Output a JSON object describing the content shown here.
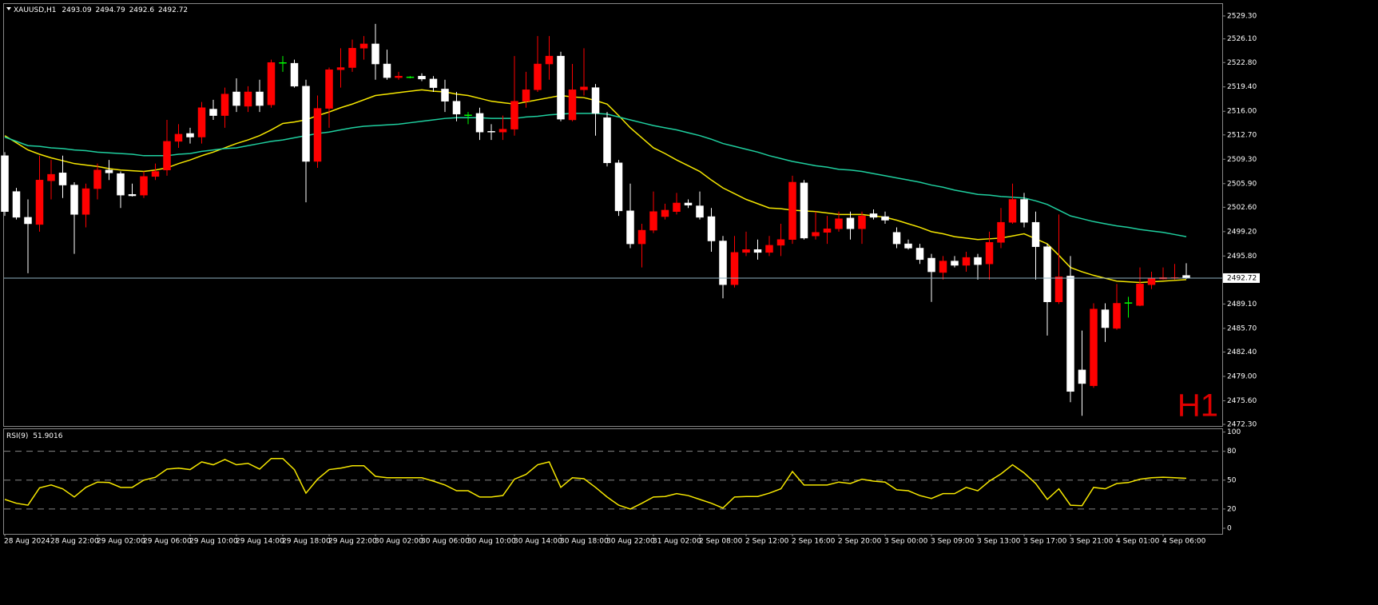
{
  "chart_data": {
    "type": "candlestick",
    "symbol": "XAUUSD,H1",
    "timeframe_label": "H1",
    "categories": [
      "28 Aug 2024",
      null,
      null,
      null,
      "28 Aug 22:00",
      null,
      null,
      null,
      "29 Aug 02:00",
      null,
      null,
      null,
      "29 Aug 06:00",
      null,
      null,
      null,
      "29 Aug 10:00",
      null,
      null,
      null,
      "29 Aug 14:00",
      null,
      null,
      null,
      "29 Aug 18:00",
      null,
      null,
      null,
      "29 Aug 22:00",
      null,
      null,
      null,
      "30 Aug 02:00",
      null,
      null,
      null,
      "30 Aug 06:00",
      null,
      null,
      null,
      "30 Aug 10:00",
      null,
      null,
      null,
      "30 Aug 14:00",
      null,
      null,
      null,
      "30 Aug 18:00",
      null,
      null,
      null,
      "30 Aug 22:00",
      null,
      null,
      null,
      "31 Aug 02:00",
      null,
      null,
      null,
      "2 Sep 08:00",
      null,
      null,
      null,
      "2 Sep 12:00",
      null,
      null,
      null,
      "2 Sep 16:00",
      null,
      null,
      null,
      "2 Sep 20:00",
      null,
      null,
      null,
      "3 Sep 00:00",
      null,
      null,
      null,
      "3 Sep 09:00",
      null,
      null,
      null,
      "3 Sep 13:00",
      null,
      null,
      null,
      "3 Sep 17:00",
      null,
      null,
      null,
      "3 Sep 21:00",
      null,
      null,
      null,
      "4 Sep 01:00",
      null,
      null,
      null,
      "4 Sep 06:00",
      null,
      null
    ],
    "open": [
      2509.8,
      2504.8,
      2501.2,
      2500.2,
      2506.3,
      2507.4,
      2505.7,
      2501.6,
      2505.2,
      2507.8,
      2507.3,
      2504.4,
      2504.3,
      2506.9,
      2507.8,
      2511.8,
      2512.9,
      2512.4,
      2516.3,
      2515.4,
      2518.7,
      2516.7,
      2518.7,
      2516.9,
      2522.8,
      2522.7,
      2519.5,
      2509.0,
      2516.4,
      2521.8,
      2522.1,
      2524.8,
      2525.4,
      2522.6,
      2520.7,
      2520.8,
      2520.9,
      2520.5,
      2519.1,
      2517.4,
      2515.5,
      2515.7,
      2513.2,
      2513.1,
      2513.5,
      2517.4,
      2519.0,
      2522.6,
      2523.7,
      2514.8,
      2519.0,
      2519.3,
      2515.1,
      2508.8,
      2502.1,
      2497.5,
      2499.4,
      2501.3,
      2502.0,
      2503.2,
      2502.8,
      2501.3,
      2497.9,
      2491.8,
      2496.3,
      2496.7,
      2496.3,
      2497.3,
      2498.1,
      2506.0,
      2498.6,
      2499.1,
      2499.6,
      2501.1,
      2499.6,
      2501.7,
      2501.3,
      2499.1,
      2497.5,
      2496.9,
      2495.5,
      2493.5,
      2495.1,
      2494.5,
      2495.6,
      2494.7,
      2497.7,
      2500.5,
      2503.7,
      2500.5,
      2497.1,
      2489.4,
      2493.0,
      2479.9,
      2477.7,
      2488.3,
      2485.7,
      2489.3,
      2488.9,
      2491.8,
      2492.6,
      2492.7,
      2493.09
    ],
    "high": [
      2510.3,
      2505.3,
      2503.7,
      2509.8,
      2509.2,
      2509.8,
      2506.1,
      2505.9,
      2508.7,
      2509.2,
      2507.6,
      2505.9,
      2507.6,
      2508.7,
      2514.8,
      2514.2,
      2513.7,
      2517.3,
      2517.6,
      2519.3,
      2520.6,
      2519.5,
      2520.4,
      2523.2,
      2523.7,
      2523.2,
      2520.4,
      2518.2,
      2522.1,
      2524.8,
      2526.0,
      2526.5,
      2528.2,
      2524.6,
      2521.5,
      2520.9,
      2521.3,
      2520.9,
      2520.4,
      2518.7,
      2515.9,
      2516.5,
      2514.2,
      2515.4,
      2523.7,
      2521.5,
      2526.5,
      2526.5,
      2524.3,
      2522.6,
      2524.8,
      2519.8,
      2515.9,
      2509.2,
      2505.9,
      2500.3,
      2504.8,
      2503.1,
      2504.6,
      2503.7,
      2504.8,
      2502.5,
      2498.6,
      2498.6,
      2499.2,
      2498.1,
      2498.6,
      2500.3,
      2507.0,
      2506.4,
      2502.0,
      2501.4,
      2502.0,
      2502.0,
      2502.0,
      2502.3,
      2502.0,
      2499.8,
      2498.1,
      2497.5,
      2496.1,
      2495.8,
      2495.8,
      2496.4,
      2496.1,
      2499.2,
      2502.5,
      2505.9,
      2504.6,
      2502.0,
      2497.5,
      2501.6,
      2495.8,
      2485.4,
      2489.2,
      2489.2,
      2491.9,
      2490.1,
      2494.2,
      2493.6,
      2494.2,
      2494.7,
      2494.79
    ],
    "low": [
      2501.4,
      2500.9,
      2493.4,
      2499.2,
      2503.7,
      2503.9,
      2496.1,
      2499.8,
      2503.7,
      2506.4,
      2502.5,
      2504.1,
      2503.9,
      2506.4,
      2507.0,
      2510.9,
      2511.5,
      2511.5,
      2514.8,
      2513.7,
      2515.9,
      2515.9,
      2515.9,
      2516.5,
      2521.5,
      2519.3,
      2503.3,
      2508.1,
      2513.7,
      2519.3,
      2521.5,
      2523.2,
      2520.4,
      2520.4,
      2520.4,
      2520.6,
      2520.2,
      2518.7,
      2515.9,
      2514.6,
      2514.2,
      2512.0,
      2512.0,
      2512.0,
      2512.6,
      2516.5,
      2518.7,
      2520.4,
      2514.6,
      2514.6,
      2518.2,
      2512.6,
      2508.3,
      2501.4,
      2496.9,
      2494.2,
      2499.0,
      2500.9,
      2501.6,
      2502.5,
      2500.9,
      2496.4,
      2489.9,
      2491.4,
      2495.8,
      2495.3,
      2495.8,
      2495.8,
      2497.5,
      2498.1,
      2498.1,
      2497.5,
      2499.2,
      2498.1,
      2497.5,
      2500.9,
      2500.3,
      2496.9,
      2496.7,
      2494.7,
      2489.4,
      2492.5,
      2494.2,
      2493.6,
      2492.5,
      2492.5,
      2496.9,
      2500.3,
      2499.8,
      2492.5,
      2484.7,
      2489.1,
      2475.4,
      2473.5,
      2477.4,
      2483.8,
      2485.5,
      2487.2,
      2488.8,
      2491.2,
      2492.5,
      2492.5,
      2492.6
    ],
    "close": [
      2502.0,
      2501.2,
      2500.3,
      2506.4,
      2507.2,
      2505.7,
      2501.6,
      2505.2,
      2507.8,
      2507.4,
      2504.3,
      2504.2,
      2506.9,
      2507.6,
      2511.8,
      2512.8,
      2512.4,
      2516.5,
      2515.4,
      2518.4,
      2516.8,
      2518.7,
      2516.8,
      2522.8,
      2522.8,
      2519.5,
      2509.0,
      2516.4,
      2521.8,
      2522.1,
      2524.8,
      2525.4,
      2522.6,
      2520.7,
      2520.9,
      2520.8,
      2520.5,
      2519.3,
      2517.4,
      2515.6,
      2515.5,
      2513.1,
      2513.1,
      2513.5,
      2517.4,
      2519.0,
      2522.6,
      2523.7,
      2514.9,
      2519.0,
      2519.4,
      2515.7,
      2508.8,
      2502.1,
      2497.5,
      2499.4,
      2502.0,
      2502.2,
      2503.2,
      2502.9,
      2501.2,
      2497.9,
      2491.8,
      2496.3,
      2496.7,
      2496.3,
      2497.3,
      2498.1,
      2506.1,
      2498.3,
      2499.1,
      2499.6,
      2501.0,
      2499.6,
      2501.4,
      2501.2,
      2500.8,
      2497.5,
      2496.9,
      2495.3,
      2493.6,
      2495.1,
      2494.5,
      2495.6,
      2494.6,
      2497.7,
      2500.5,
      2503.7,
      2500.5,
      2497.1,
      2489.4,
      2492.9,
      2476.9,
      2478.0,
      2488.4,
      2485.8,
      2489.2,
      2489.3,
      2491.9,
      2492.7,
      2492.8,
      2492.8,
      2492.72
    ],
    "colors": {
      "up": "#ff0000",
      "down": "#ffffff",
      "doji": "#00ff00"
    },
    "ylim": [
      2472.08,
      2530.97
    ],
    "yticks": [
      {
        "value": 2529.3,
        "label": "2529.30"
      },
      {
        "value": 2526.1,
        "label": "2526.10"
      },
      {
        "value": 2522.8,
        "label": "2522.80"
      },
      {
        "value": 2519.4,
        "label": "2519.40"
      },
      {
        "value": 2516,
        "label": "2516.00"
      },
      {
        "value": 2512.7,
        "label": "2512.70"
      },
      {
        "value": 2509.3,
        "label": "2509.30"
      },
      {
        "value": 2505.9,
        "label": "2505.90"
      },
      {
        "value": 2502.6,
        "label": "2502.60"
      },
      {
        "value": 2499.2,
        "label": "2499.20"
      },
      {
        "value": 2495.8,
        "label": "2495.80"
      },
      {
        "value": 2489.1,
        "label": "2489.10"
      },
      {
        "value": 2485.7,
        "label": "2485.70"
      },
      {
        "value": 2482.4,
        "label": "2482.40"
      },
      {
        "value": 2479,
        "label": "2479.00"
      },
      {
        "value": 2475.6,
        "label": "2475.60"
      },
      {
        "value": 2472.3,
        "label": "2472.30"
      }
    ],
    "overlays": [
      {
        "color": "#f5e600",
        "values": [
          2512.6,
          2511.6,
          2510.6,
          2510.0,
          2509.5,
          2509.1,
          2508.7,
          2508.5,
          2508.3,
          2508.0,
          2507.8,
          2507.7,
          2507.6,
          2507.8,
          2508.1,
          2508.7,
          2509.2,
          2509.8,
          2510.3,
          2510.9,
          2511.5,
          2512.0,
          2512.6,
          2513.4,
          2514.3,
          2514.5,
          2514.8,
          2515.4,
          2515.9,
          2516.5,
          2517.0,
          2517.6,
          2518.2,
          2518.4,
          2518.6,
          2518.8,
          2519.0,
          2518.8,
          2518.7,
          2518.4,
          2518.2,
          2517.8,
          2517.4,
          2517.2,
          2517.0,
          2517.3,
          2517.6,
          2517.9,
          2518.2,
          2518.0,
          2517.9,
          2517.5,
          2517.0,
          2515.4,
          2513.7,
          2512.3,
          2510.9,
          2510.1,
          2509.2,
          2508.4,
          2507.6,
          2506.4,
          2505.3,
          2504.5,
          2503.7,
          2503.1,
          2502.5,
          2502.4,
          2502.2,
          2502.1,
          2502.0,
          2501.8,
          2501.6,
          2501.6,
          2501.6,
          2501.4,
          2501.2,
          2500.8,
          2500.3,
          2499.8,
          2499.2,
          2498.9,
          2498.5,
          2498.3,
          2498.1,
          2498.2,
          2498.3,
          2498.6,
          2498.9,
          2498.2,
          2497.5,
          2495.9,
          2494.2,
          2493.6,
          2493.1,
          2492.7,
          2492.3,
          2492.2,
          2492.1,
          2492.2,
          2492.3,
          2492.4,
          2492.5
        ]
      },
      {
        "color": "#1fcf9f",
        "values": [
          2512.4,
          2511.8,
          2511.2,
          2511.1,
          2510.9,
          2510.8,
          2510.6,
          2510.5,
          2510.3,
          2510.2,
          2510.1,
          2510.0,
          2509.8,
          2509.8,
          2509.8,
          2510.0,
          2510.1,
          2510.4,
          2510.6,
          2510.8,
          2510.9,
          2511.2,
          2511.5,
          2511.8,
          2512.0,
          2512.3,
          2512.6,
          2512.9,
          2513.1,
          2513.4,
          2513.7,
          2513.9,
          2514.0,
          2514.1,
          2514.2,
          2514.4,
          2514.6,
          2514.8,
          2515.0,
          2515.1,
          2515.1,
          2515.1,
          2515.0,
          2515.0,
          2515.0,
          2515.2,
          2515.3,
          2515.5,
          2515.6,
          2515.7,
          2515.7,
          2515.7,
          2515.6,
          2515.2,
          2514.8,
          2514.4,
          2514.0,
          2513.7,
          2513.4,
          2513.0,
          2512.6,
          2512.1,
          2511.5,
          2511.1,
          2510.7,
          2510.3,
          2509.8,
          2509.4,
          2509.0,
          2508.7,
          2508.4,
          2508.2,
          2507.9,
          2507.8,
          2507.6,
          2507.3,
          2507.0,
          2506.7,
          2506.4,
          2506.1,
          2505.7,
          2505.4,
          2505.0,
          2504.7,
          2504.4,
          2504.3,
          2504.1,
          2504.0,
          2503.9,
          2503.5,
          2503.0,
          2502.2,
          2501.4,
          2501.0,
          2500.6,
          2500.3,
          2500.0,
          2499.8,
          2499.5,
          2499.3,
          2499.1,
          2498.8,
          2498.5
        ]
      }
    ],
    "rsi": {
      "label": "RSI(9)",
      "color": "#f5e600",
      "ylim": [
        -5,
        103
      ],
      "yticks": [
        100,
        80,
        50,
        20,
        0
      ],
      "levels": [
        80,
        50,
        20
      ],
      "values": [
        30,
        26,
        24,
        42,
        45,
        41,
        32.5,
        42.5,
        48,
        47.5,
        42.5,
        42.5,
        50,
        53,
        61.5,
        62.5,
        61,
        69,
        66,
        71.5,
        66,
        67.5,
        61.5,
        72.5,
        72.5,
        61,
        36.5,
        51,
        61,
        62.5,
        65,
        65,
        54,
        52.5,
        52.5,
        52.5,
        52.5,
        49,
        45,
        39,
        39,
        32.5,
        32.5,
        34,
        51,
        56,
        66,
        69,
        42.5,
        52.5,
        51.5,
        42.5,
        32.5,
        24,
        20,
        26,
        32.5,
        33,
        36,
        34,
        30,
        26,
        21,
        32.5,
        33,
        33,
        36.5,
        41,
        59,
        45,
        45,
        45,
        48,
        46.5,
        51,
        49,
        48,
        40,
        39,
        34,
        31,
        36,
        36,
        42.5,
        39,
        49,
        56.5,
        66,
        57.5,
        46.5,
        30,
        41,
        24,
        23.5,
        42.5,
        41,
        46.5,
        47.5,
        51,
        52.5,
        53,
        52.5,
        51.9016
      ]
    }
  }
}
